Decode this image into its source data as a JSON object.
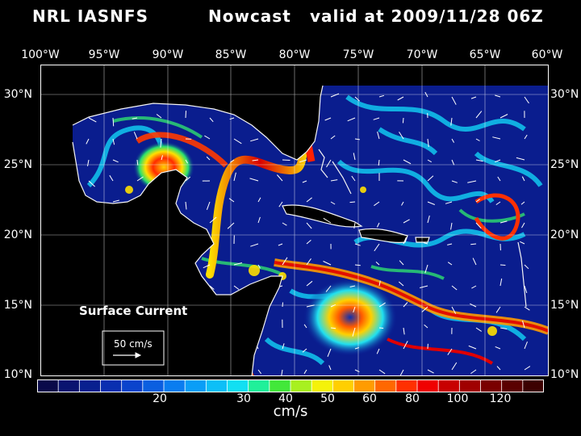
{
  "header": {
    "left": "NRL IASNFS",
    "middle": "Nowcast",
    "right": "valid at 2009/11/28 06Z"
  },
  "axes": {
    "lon_labels": [
      "100°W",
      "95°W",
      "90°W",
      "85°W",
      "80°W",
      "75°W",
      "70°W",
      "65°W",
      "60°W"
    ],
    "lat_labels": [
      "30°N",
      "25°N",
      "20°N",
      "15°N",
      "10°N"
    ]
  },
  "map": {
    "field_label": "Surface Current",
    "reference_vector_label": "50 cm/s"
  },
  "colorbar": {
    "tick_labels": [
      "20",
      "30",
      "40",
      "50",
      "60",
      "80",
      "100",
      "120"
    ],
    "units": "cm/s",
    "colors": [
      "#0a0a4a",
      "#0a1470",
      "#08208f",
      "#0a2fb0",
      "#0b44cc",
      "#0b5fe0",
      "#0a7df0",
      "#0a9ef7",
      "#0dbff7",
      "#12dff2",
      "#20f09a",
      "#42e83a",
      "#a8f020",
      "#f5f20a",
      "#ffcf00",
      "#ff9c00",
      "#ff6800",
      "#ff3000",
      "#f00000",
      "#c80000",
      "#a00000",
      "#7a0000",
      "#5a0000",
      "#3c0000"
    ]
  }
}
